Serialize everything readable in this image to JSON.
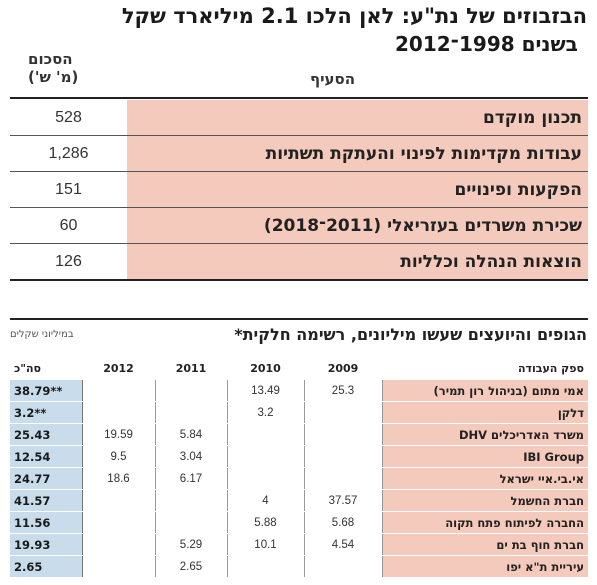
{
  "title_line1": "הבזבוזים של נת\"ע: לאן הלכו 2.1 מיליארד שקל",
  "title_line2": "בשנים 1998־2012",
  "table1": {
    "header_section": "הסעיף",
    "header_amount_line1": "הסכום",
    "header_amount_line2": "(מ' ש')",
    "rows": [
      {
        "label": "תכנון מוקדם",
        "value": "528"
      },
      {
        "label": "עבודות מקדימות לפינוי והעתקת תשתיות",
        "value": "1,286"
      },
      {
        "label": "הפקעות ופינויים",
        "value": "151"
      },
      {
        "label": "שכירת משרדים בעזריאלי (2011־2018)",
        "value": "60"
      },
      {
        "label": "הוצאות הנהלה וכלליות",
        "value": "126"
      }
    ]
  },
  "table2": {
    "title": "הגופים והיועצים שעשו מיליונים, רשימה חלקית*",
    "subtitle": "במיליוני שקלים",
    "headers": {
      "supplier": "ספק העבודה",
      "y2009": "2009",
      "y2010": "2010",
      "y2011": "2011",
      "y2012": "2012",
      "total": "סה\"כ"
    },
    "rows": [
      {
        "supplier": "אמי מתום (בניהול רון תמיר)",
        "y2009": "25.3",
        "y2010": "13.49",
        "y2011": "",
        "y2012": "",
        "total": "38.79**"
      },
      {
        "supplier": "דלקן",
        "y2009": "",
        "y2010": "3.2",
        "y2011": "",
        "y2012": "",
        "total": "3.2**"
      },
      {
        "supplier": "משרד האדריכלים DHV",
        "y2009": "",
        "y2010": "",
        "y2011": "5.84",
        "y2012": "19.59",
        "total": "25.43"
      },
      {
        "supplier": "IBI Group",
        "y2009": "",
        "y2010": "",
        "y2011": "3.04",
        "y2012": "9.5",
        "total": "12.54"
      },
      {
        "supplier": "אי.בי.איי ישראל",
        "y2009": "",
        "y2010": "",
        "y2011": "6.17",
        "y2012": "18.6",
        "total": "24.77"
      },
      {
        "supplier": "חברת החשמל",
        "y2009": "37.57",
        "y2010": "4",
        "y2011": "",
        "y2012": "",
        "total": "41.57"
      },
      {
        "supplier": "החברה לפיתוח פתח תקוה",
        "y2009": "5.68",
        "y2010": "5.88",
        "y2011": "",
        "y2012": "",
        "total": "11.56"
      },
      {
        "supplier": "חברת חוף בת ים",
        "y2009": "4.54",
        "y2010": "10.1",
        "y2011": "5.29",
        "y2012": "",
        "total": "19.93"
      },
      {
        "supplier": "עיריית ת\"א יפו",
        "y2009": "",
        "y2010": "",
        "y2011": "2.65",
        "y2012": "",
        "total": "2.65"
      }
    ]
  }
}
